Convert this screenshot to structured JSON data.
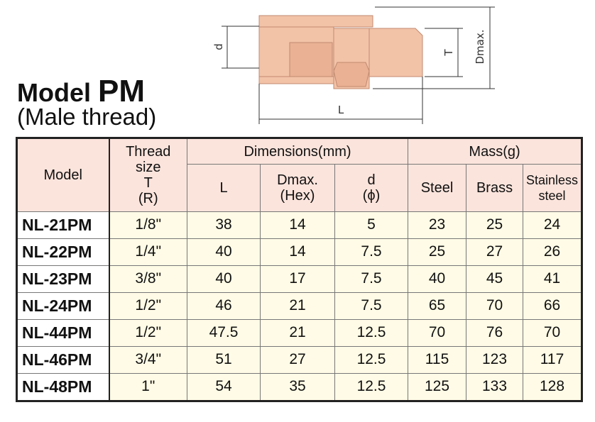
{
  "header": {
    "title": "Model",
    "title_bold": "PM",
    "subtitle": "(Male thread)"
  },
  "diagram": {
    "labels": {
      "d": "d",
      "T": "T",
      "Dmax": "Dmax.",
      "L": "L"
    }
  },
  "table": {
    "headers": {
      "model": "Model",
      "thread": [
        "Thread",
        "size",
        "T",
        "(R)"
      ],
      "dimensions": "Dimensions(mm)",
      "mass": "Mass(g)",
      "L": "L",
      "Dmax": [
        "Dmax.",
        "(Hex)"
      ],
      "d": [
        "d",
        "(ϕ)"
      ],
      "steel": "Steel",
      "brass": "Brass",
      "stainless": [
        "Stainless",
        "steel"
      ]
    },
    "rows": [
      [
        "NL-21PM",
        "1/8\"",
        "38",
        "14",
        "5",
        "23",
        "25",
        "24"
      ],
      [
        "NL-22PM",
        "1/4\"",
        "40",
        "14",
        "7.5",
        "25",
        "27",
        "26"
      ],
      [
        "NL-23PM",
        "3/8\"",
        "40",
        "17",
        "7.5",
        "40",
        "45",
        "41"
      ],
      [
        "NL-24PM",
        "1/2\"",
        "46",
        "21",
        "7.5",
        "65",
        "70",
        "66"
      ],
      [
        "NL-44PM",
        "1/2\"",
        "47.5",
        "21",
        "12.5",
        "70",
        "76",
        "70"
      ],
      [
        "NL-46PM",
        "3/4\"",
        "51",
        "27",
        "12.5",
        "115",
        "123",
        "117"
      ],
      [
        "NL-48PM",
        "1\"",
        "54",
        "35",
        "12.5",
        "125",
        "133",
        "128"
      ]
    ]
  }
}
